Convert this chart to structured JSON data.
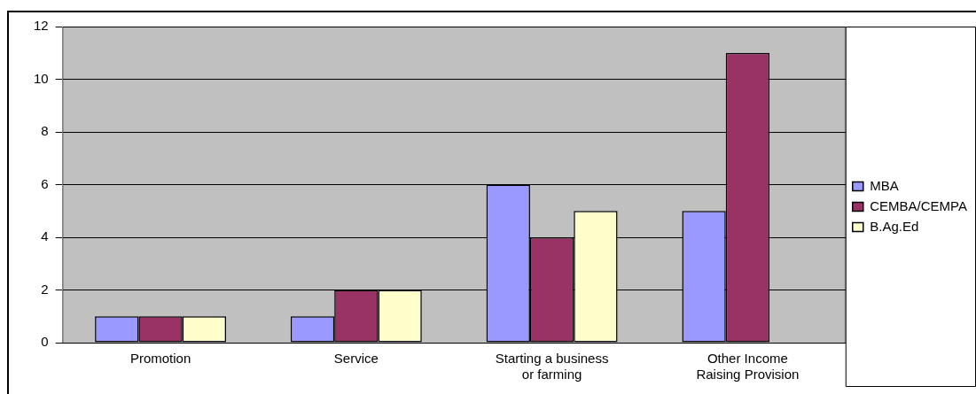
{
  "chart_data": {
    "type": "bar",
    "categories": [
      "Promotion",
      "Service",
      "Starting a business or farming",
      "Other Income Raising Provision"
    ],
    "series": [
      {
        "name": "MBA",
        "color": "#9999ff",
        "values": [
          1,
          1,
          6,
          5
        ]
      },
      {
        "name": "CEMBA/CEMPA",
        "color": "#993366",
        "values": [
          1,
          2,
          4,
          11
        ]
      },
      {
        "name": "B.Ag.Ed",
        "color": "#ffffcc",
        "values": [
          1,
          2,
          5,
          null
        ]
      }
    ],
    "ylim": [
      0,
      12
    ],
    "yticks": [
      0,
      2,
      4,
      6,
      8,
      10,
      12
    ],
    "grid": "y",
    "legend": "right"
  }
}
